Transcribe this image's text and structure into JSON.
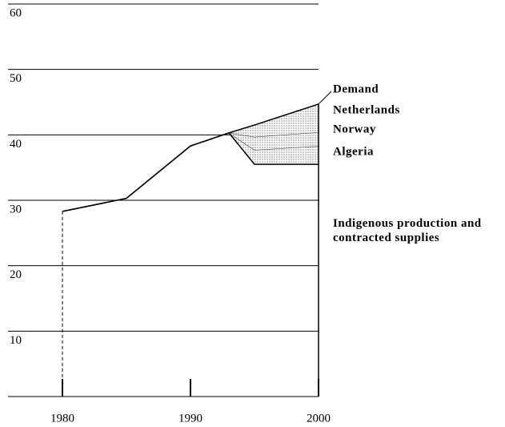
{
  "chart_data": {
    "type": "area",
    "x": [
      1980,
      1985,
      1990,
      1993,
      1995,
      2000
    ],
    "xlim": [
      1980,
      2000
    ],
    "xticks": [
      1980,
      1990,
      2000
    ],
    "ylim": [
      0,
      60
    ],
    "yticks": [
      0,
      10,
      20,
      30,
      40,
      50,
      60
    ],
    "grid": true,
    "series": [
      {
        "name": "Indigenous production and contracted supplies",
        "color": "#000000",
        "values": [
          28.3,
          30.3,
          38.3,
          40.3,
          35.5,
          35.5
        ]
      },
      {
        "name": "Algeria",
        "color": "#bbbbbb",
        "values": [
          null,
          null,
          null,
          0,
          2.2,
          2.8
        ]
      },
      {
        "name": "Norway",
        "color": "#cccccc",
        "values": [
          null,
          null,
          null,
          0,
          2,
          2.1
        ]
      },
      {
        "name": "Netherlands",
        "color": "#dddddd",
        "values": [
          null,
          null,
          null,
          0,
          1.8,
          4.3
        ]
      },
      {
        "name": "Demand",
        "color": "#000000",
        "values": [
          28.3,
          30.3,
          38.3,
          40.3,
          41.5,
          44.7
        ]
      }
    ]
  }
}
